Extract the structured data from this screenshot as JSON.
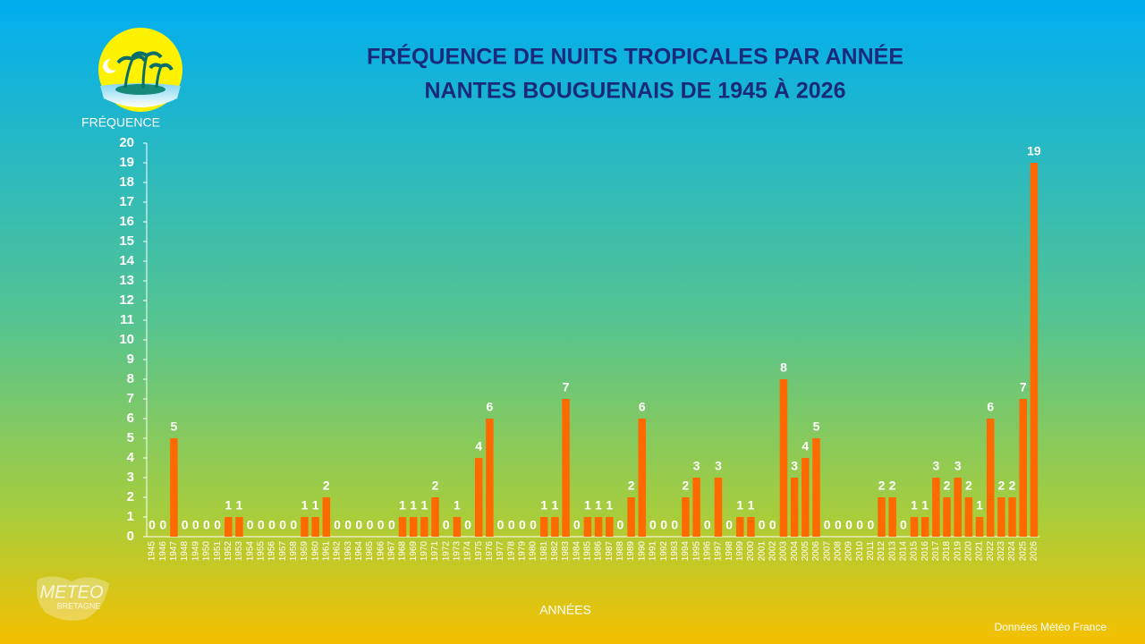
{
  "chart_data": {
    "type": "bar",
    "title": "FRÉQUENCE DE NUITS TROPICALES PAR ANNÉE",
    "subtitle": "NANTES BOUGUENAIS DE 1945 À 2026",
    "y_label": "FRÉQUENCE",
    "x_label": "ANNÉES",
    "source": "Données Météo France",
    "logo_text": [
      "METEO",
      "BRETAGNE"
    ],
    "color": "#ff6a00",
    "categories": [
      "1945",
      "1946",
      "1947",
      "1948",
      "1949",
      "1950",
      "1951",
      "1952",
      "1953",
      "1954",
      "1955",
      "1956",
      "1957",
      "1958",
      "1959",
      "1960",
      "1961",
      "1962",
      "1963",
      "1964",
      "1965",
      "1966",
      "1967",
      "1968",
      "1969",
      "1970",
      "1971",
      "1972",
      "1973",
      "1974",
      "1975",
      "1976",
      "1977",
      "1978",
      "1979",
      "1980",
      "1981",
      "1982",
      "1983",
      "1984",
      "1985",
      "1986",
      "1987",
      "1988",
      "1989",
      "1990",
      "1991",
      "1992",
      "1993",
      "1994",
      "1995",
      "1996",
      "1997",
      "1998",
      "1999",
      "2000",
      "2001",
      "2002",
      "2003",
      "2004",
      "2005",
      "2006",
      "2007",
      "2008",
      "2009",
      "2010",
      "2011",
      "2012",
      "2013",
      "2014",
      "2015",
      "2016",
      "2017",
      "2018",
      "2019",
      "2020",
      "2021",
      "2022",
      "2023",
      "2024",
      "2025",
      "2026"
    ],
    "values": [
      0,
      0,
      5,
      0,
      0,
      0,
      0,
      1,
      1,
      0,
      0,
      0,
      0,
      0,
      1,
      1,
      2,
      0,
      0,
      0,
      0,
      0,
      0,
      1,
      1,
      1,
      2,
      0,
      1,
      0,
      4,
      6,
      0,
      0,
      0,
      0,
      1,
      1,
      7,
      0,
      1,
      1,
      1,
      0,
      2,
      6,
      0,
      0,
      0,
      2,
      3,
      0,
      3,
      0,
      1,
      1,
      0,
      0,
      8,
      3,
      4,
      5,
      0,
      0,
      0,
      0,
      0,
      2,
      2,
      0,
      1,
      1,
      3,
      2,
      3,
      2,
      1,
      6,
      2,
      2,
      7,
      19
    ],
    "ylim": [
      0,
      20
    ],
    "yticks": [
      0,
      1,
      2,
      3,
      4,
      5,
      6,
      7,
      8,
      9,
      10,
      11,
      12,
      13,
      14,
      15,
      16,
      17,
      18,
      19,
      20
    ]
  }
}
